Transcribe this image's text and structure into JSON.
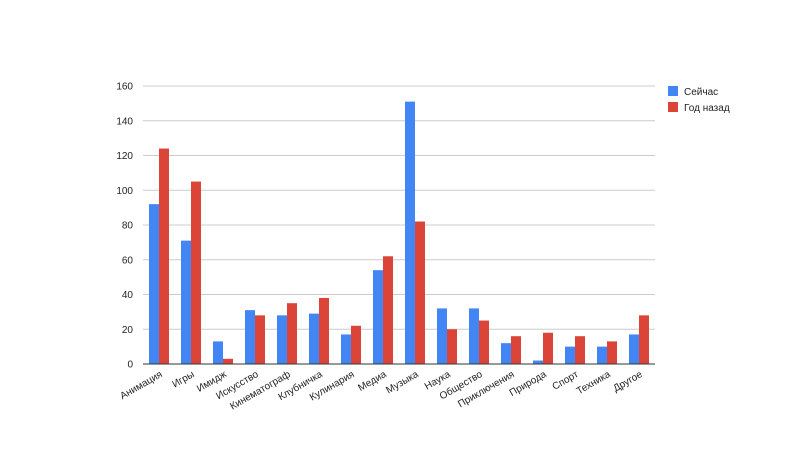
{
  "chart_data": {
    "type": "bar",
    "title": "",
    "xlabel": "",
    "ylabel": "",
    "ylim": [
      0,
      160
    ],
    "yticks": [
      0,
      20,
      40,
      60,
      80,
      100,
      120,
      140,
      160
    ],
    "grid": true,
    "legend_position": "right",
    "categories": [
      "Анимация",
      "Игры",
      "Имидж",
      "Искусство",
      "Кинематограф",
      "Клубничка",
      "Кулинария",
      "Медиа",
      "Музыка",
      "Наука",
      "Общество",
      "Приключения",
      "Природа",
      "Спорт",
      "Техника",
      "Другое"
    ],
    "series": [
      {
        "name": "Сейчас",
        "color": "#4285f4",
        "values": [
          92,
          71,
          13,
          31,
          28,
          29,
          17,
          54,
          151,
          32,
          32,
          12,
          2,
          10,
          10,
          17
        ]
      },
      {
        "name": "Год назад",
        "color": "#db4437",
        "values": [
          124,
          105,
          3,
          28,
          35,
          38,
          22,
          62,
          82,
          20,
          25,
          16,
          18,
          16,
          13,
          28
        ]
      }
    ]
  }
}
